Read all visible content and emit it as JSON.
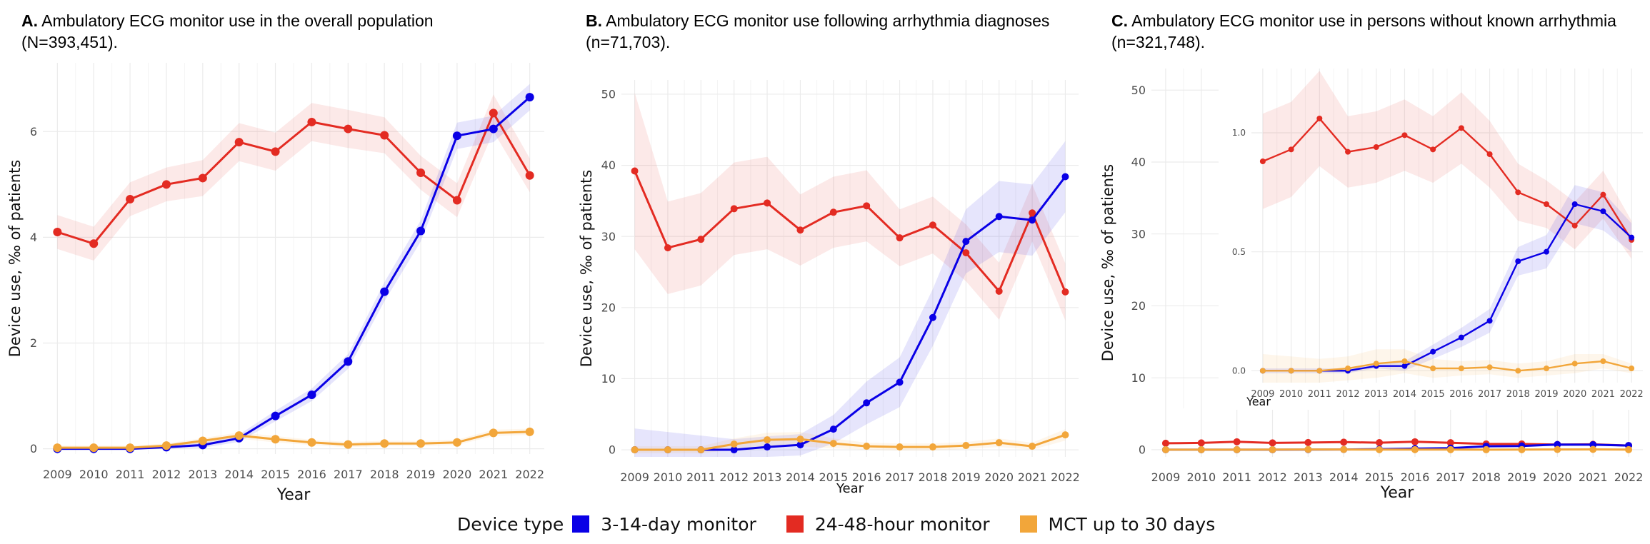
{
  "legend": {
    "title": "Device type",
    "items": [
      {
        "label": "3-14-day monitor",
        "color": "#0a00e6"
      },
      {
        "label": "24-48-hour monitor",
        "color": "#e32b22"
      },
      {
        "label": "MCT up to 30 days",
        "color": "#f2a63a"
      }
    ]
  },
  "chart_data": [
    {
      "type": "line",
      "title_letter": "A.",
      "title": "Ambulatory ECG monitor use in the overall population",
      "subtitle": "(N=393,451).",
      "xlabel": "Year",
      "ylabel": "Device use, ‰ of patients",
      "x": [
        2009,
        2010,
        2011,
        2012,
        2013,
        2014,
        2015,
        2016,
        2017,
        2018,
        2019,
        2020,
        2021,
        2022
      ],
      "xlim": [
        2008.6,
        2022.4
      ],
      "ylim": [
        -0.1,
        7.3
      ],
      "yticks": [
        0,
        2,
        4,
        6
      ],
      "series": [
        {
          "name": "24-48-hour monitor",
          "color": "#e32b22",
          "values": [
            4.1,
            3.88,
            4.72,
            5.0,
            5.12,
            5.8,
            5.62,
            6.18,
            6.05,
            5.93,
            5.22,
            4.7,
            6.35,
            5.17
          ],
          "ci_half": [
            0.32,
            0.32,
            0.32,
            0.32,
            0.34,
            0.36,
            0.36,
            0.36,
            0.36,
            0.34,
            0.32,
            0.32,
            0.35,
            0.32
          ]
        },
        {
          "name": "3-14-day monitor",
          "color": "#0a00e6",
          "values": [
            0.0,
            0.0,
            0.0,
            0.03,
            0.07,
            0.2,
            0.62,
            1.02,
            1.65,
            2.97,
            4.12,
            5.92,
            6.05,
            6.65
          ],
          "ci_half": [
            0.02,
            0.02,
            0.02,
            0.03,
            0.05,
            0.07,
            0.1,
            0.12,
            0.14,
            0.18,
            0.2,
            0.25,
            0.25,
            0.25
          ]
        },
        {
          "name": "MCT up to 30 days",
          "color": "#f2a63a",
          "values": [
            0.02,
            0.02,
            0.02,
            0.06,
            0.15,
            0.25,
            0.18,
            0.12,
            0.08,
            0.1,
            0.1,
            0.12,
            0.3,
            0.32
          ],
          "ci_half": [
            0.04,
            0.04,
            0.04,
            0.04,
            0.05,
            0.06,
            0.06,
            0.05,
            0.05,
            0.05,
            0.05,
            0.05,
            0.06,
            0.06
          ]
        }
      ]
    },
    {
      "type": "line",
      "title_letter": "B.",
      "title": "Ambulatory ECG monitor use following arrhythmia diagnoses",
      "subtitle": "(n=71,703).",
      "xlabel": "Year",
      "ylabel": "Device use, ‰ of patients",
      "x": [
        2009,
        2010,
        2011,
        2012,
        2013,
        2014,
        2015,
        2016,
        2017,
        2018,
        2019,
        2020,
        2021,
        2022
      ],
      "xlim": [
        2008.6,
        2022.4
      ],
      "ylim": [
        -1,
        52
      ],
      "yticks": [
        0,
        10,
        20,
        30,
        40,
        50
      ],
      "series": [
        {
          "name": "24-48-hour monitor",
          "color": "#e32b22",
          "values": [
            39.2,
            28.4,
            29.6,
            33.9,
            34.7,
            30.9,
            33.4,
            34.3,
            29.8,
            31.6,
            27.7,
            22.3,
            33.3,
            22.2
          ],
          "ci_half": [
            11,
            6.5,
            6.5,
            6.5,
            6.5,
            5,
            5,
            5,
            4,
            4,
            4,
            4,
            4,
            4
          ]
        },
        {
          "name": "3-14-day monitor",
          "color": "#0a00e6",
          "values": [
            0,
            0,
            0,
            0,
            0.4,
            0.7,
            2.9,
            6.6,
            9.5,
            18.6,
            29.3,
            32.8,
            32.3,
            38.4
          ],
          "ci_half": [
            3,
            2.5,
            2,
            1.5,
            1.5,
            1.5,
            2,
            3,
            3.5,
            4,
            4.5,
            5,
            5,
            5
          ]
        },
        {
          "name": "MCT up to 30 days",
          "color": "#f2a63a",
          "values": [
            0,
            0,
            0,
            0.8,
            1.4,
            1.5,
            0.9,
            0.5,
            0.4,
            0.4,
            0.6,
            1.0,
            0.5,
            2.1
          ],
          "ci_half": [
            0.5,
            0.5,
            0.5,
            0.8,
            1.0,
            1.0,
            0.7,
            0.5,
            0.5,
            0.5,
            0.5,
            0.6,
            0.5,
            0.8
          ]
        }
      ]
    },
    {
      "type": "line",
      "title_letter": "C.",
      "title": "Ambulatory ECG monitor use in persons without known arrhythmia",
      "subtitle": "(n=321,748).",
      "xlabel": "Year",
      "ylabel": "Device use, ‰ of patients",
      "x": [
        2009,
        2010,
        2011,
        2012,
        2013,
        2014,
        2015,
        2016,
        2017,
        2018,
        2019,
        2020,
        2021,
        2022
      ],
      "xlim": [
        2008.6,
        2022.4
      ],
      "ylim": [
        -1,
        53
      ],
      "yticks": [
        10,
        20,
        30,
        40,
        50
      ],
      "extra_ytick": "0",
      "series": [
        {
          "name": "24-48-hour monitor",
          "color": "#e32b22",
          "values": [
            0.9,
            0.95,
            1.1,
            0.95,
            1.0,
            1.05,
            0.98,
            1.1,
            0.97,
            0.8,
            0.8,
            0.72,
            0.75,
            0.58
          ]
        },
        {
          "name": "3-14-day monitor",
          "color": "#0a00e6",
          "values": [
            0,
            0,
            0,
            0,
            0.02,
            0.03,
            0.08,
            0.15,
            0.22,
            0.48,
            0.52,
            0.72,
            0.7,
            0.58
          ]
        },
        {
          "name": "MCT up to 30 days",
          "color": "#f2a63a",
          "values": [
            0,
            0,
            0,
            0.01,
            0.03,
            0.03,
            0.01,
            0.01,
            0.01,
            0,
            0.01,
            0.03,
            0.04,
            0.01
          ]
        }
      ],
      "inset": {
        "type": "line",
        "xlabel": "Year",
        "x": [
          2009,
          2010,
          2011,
          2012,
          2013,
          2014,
          2015,
          2016,
          2017,
          2018,
          2019,
          2020,
          2021,
          2022
        ],
        "xlim": [
          2008.6,
          2022.4
        ],
        "ylim": [
          -0.05,
          1.27
        ],
        "yticks": [
          0.0,
          0.5,
          1.0
        ],
        "ytick_labels": [
          "0.0",
          "0.5",
          "1.0"
        ],
        "series": [
          {
            "name": "24-48-hour monitor",
            "color": "#e32b22",
            "values": [
              0.88,
              0.93,
              1.06,
              0.92,
              0.94,
              0.99,
              0.93,
              1.02,
              0.91,
              0.75,
              0.7,
              0.61,
              0.74,
              0.55
            ],
            "ci_half": [
              0.2,
              0.2,
              0.2,
              0.15,
              0.15,
              0.15,
              0.14,
              0.15,
              0.14,
              0.12,
              0.1,
              0.1,
              0.1,
              0.08
            ]
          },
          {
            "name": "3-14-day monitor",
            "color": "#0a00e6",
            "values": [
              0,
              0,
              0,
              0,
              0.02,
              0.02,
              0.08,
              0.14,
              0.21,
              0.46,
              0.5,
              0.7,
              0.67,
              0.56
            ],
            "ci_half": [
              0.01,
              0.01,
              0.01,
              0.01,
              0.01,
              0.02,
              0.03,
              0.04,
              0.05,
              0.06,
              0.07,
              0.08,
              0.08,
              0.06
            ]
          },
          {
            "name": "MCT up to 30 days",
            "color": "#f2a63a",
            "values": [
              0.0,
              0.0,
              0.0,
              0.01,
              0.03,
              0.04,
              0.01,
              0.01,
              0.015,
              0.0,
              0.01,
              0.03,
              0.04,
              0.01
            ],
            "ci_half": [
              0.07,
              0.06,
              0.05,
              0.05,
              0.06,
              0.05,
              0.04,
              0.03,
              0.03,
              0.03,
              0.03,
              0.04,
              0.03,
              0.02
            ]
          }
        ]
      }
    }
  ]
}
